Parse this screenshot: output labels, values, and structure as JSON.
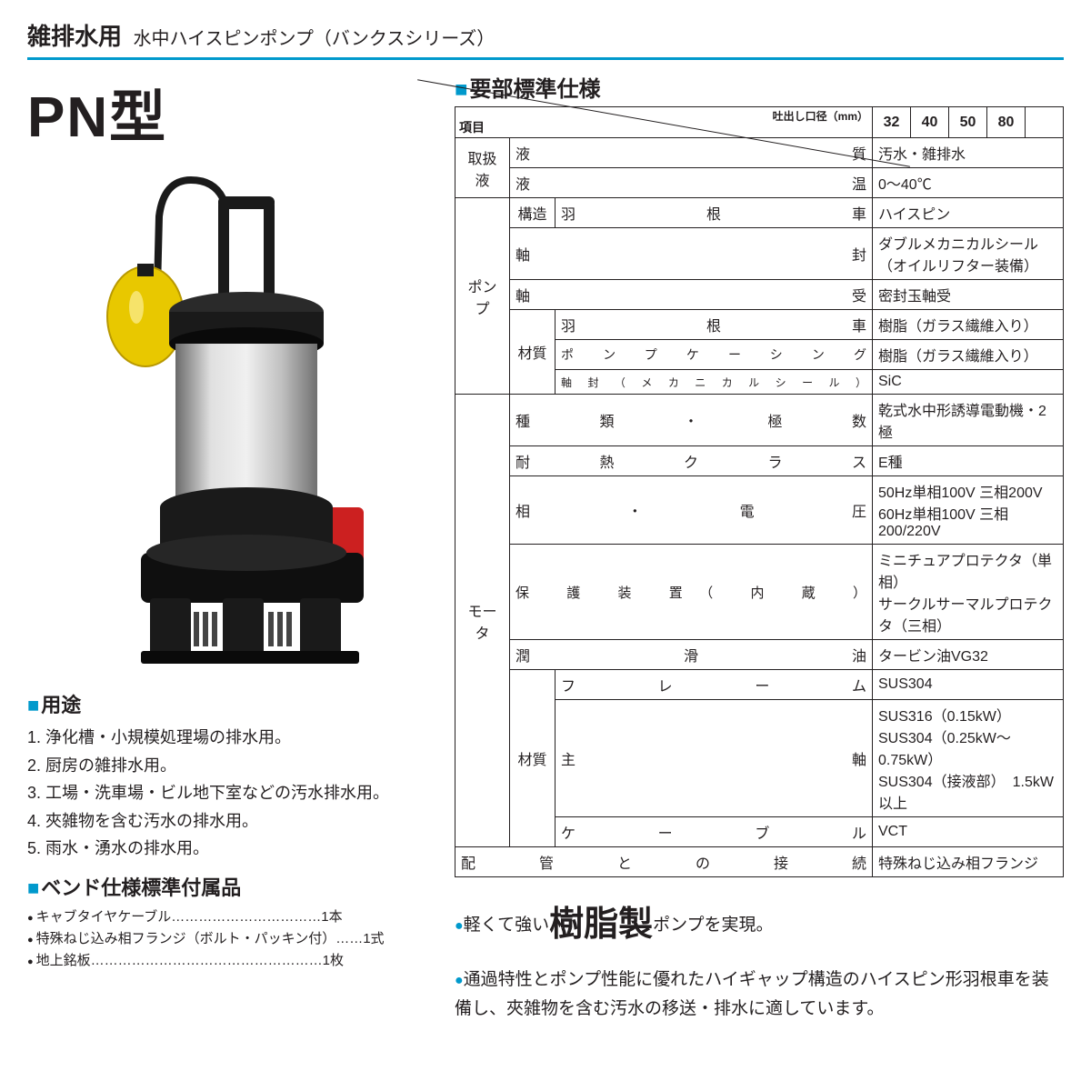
{
  "header": {
    "category": "雑排水用",
    "subtitle": "水中ハイスピンポンプ（バンクスシリーズ）"
  },
  "model": "PN型",
  "spec_title": "要部標準仕様",
  "spec_header": {
    "diag_top": "吐出し口径（mm）",
    "diag_bot": "項目",
    "sizes": [
      "32",
      "40",
      "50",
      "80"
    ]
  },
  "spec_rows": [
    {
      "cat": "取扱液",
      "rowspan": 2,
      "sub": "",
      "label": "液　　　　　質",
      "value": "汚水・雑排水"
    },
    {
      "label": "液　　　　　温",
      "value": "0～40℃"
    },
    {
      "cat": "ポンプ",
      "rowspan": 6,
      "sub": "構造",
      "subrowspan": 1,
      "label": "羽　根　車",
      "value": "ハイスピン"
    },
    {
      "sub": "",
      "label": "軸　　　　　封",
      "value": "ダブルメカニカルシール\n（オイルリフター装備）"
    },
    {
      "label": "軸　　　　　受",
      "value": "密封玉軸受"
    },
    {
      "sub": "材質",
      "subrowspan": 3,
      "label": "羽　根　車",
      "value": "樹脂（ガラス繊維入り）"
    },
    {
      "label": "ポンプケーシング",
      "value": "樹脂（ガラス繊維入り）"
    },
    {
      "label": "軸封（メカニカルシール）",
      "labelsmall": true,
      "value": "SiC"
    },
    {
      "cat": "モータ",
      "rowspan": 8,
      "label": "種 類 ・ 極 数",
      "colspan": 2,
      "value": "乾式水中形誘導電動機・2極"
    },
    {
      "label": "耐 熱 ク ラ ス",
      "colspan": 2,
      "value": "E種"
    },
    {
      "label": "相　・　電　圧",
      "colspan": 2,
      "value": "50Hz単相100V 三相200V\n60Hz単相100V 三相200/220V"
    },
    {
      "label": "保 護 装 置（ 内 蔵 ）",
      "colspan": 2,
      "value": "ミニチュアプロテクタ（単相）\nサークルサーマルプロテクタ（三相）"
    },
    {
      "label": "潤　　滑　　油",
      "colspan": 2,
      "value": "タービン油VG32"
    },
    {
      "sub": "材質",
      "subrowspan": 3,
      "label": "フ レ ー ム",
      "value": "SUS304"
    },
    {
      "label": "主　　　軸",
      "value": "SUS316（0.15kW）\nSUS304（0.25kW～0.75kW）\nSUS304（接液部）　1.5kW以上"
    },
    {
      "label": "ケ ー ブ ル",
      "value": "VCT"
    },
    {
      "fullrow": true,
      "label": "配　管　と　の　接　続",
      "value": "特殊ねじ込み相フランジ"
    }
  ],
  "uses_title": "用途",
  "uses": [
    "1. 浄化槽・小規模処理場の排水用。",
    "2. 厨房の雑排水用。",
    "3. 工場・洗車場・ビル地下室などの汚水排水用。",
    "4. 夾雑物を含む汚水の排水用。",
    "5. 雨水・湧水の排水用。"
  ],
  "accessories_title": "ベンド仕様標準付属品",
  "accessories": [
    "キャブタイヤケーブル……………………………1本",
    "特殊ねじ込み相フランジ（ボルト・パッキン付）……1式",
    "地上銘板……………………………………………1枚"
  ],
  "features": {
    "f1_pre": "軽くて強い",
    "f1_big": "樹脂製",
    "f1_post": "ポンプを実現。",
    "f2": "通過特性とポンプ性能に優れたハイギャップ構造のハイスピン形羽根車を装備し、夾雑物を含む汚水の移送・排水に適しています。"
  },
  "colors": {
    "accent": "#0099cc",
    "text": "#231f20",
    "float_yellow": "#e8c800",
    "body_black": "#1a1a1a",
    "body_steel": "#b8b8b8",
    "body_red": "#cc2020"
  }
}
